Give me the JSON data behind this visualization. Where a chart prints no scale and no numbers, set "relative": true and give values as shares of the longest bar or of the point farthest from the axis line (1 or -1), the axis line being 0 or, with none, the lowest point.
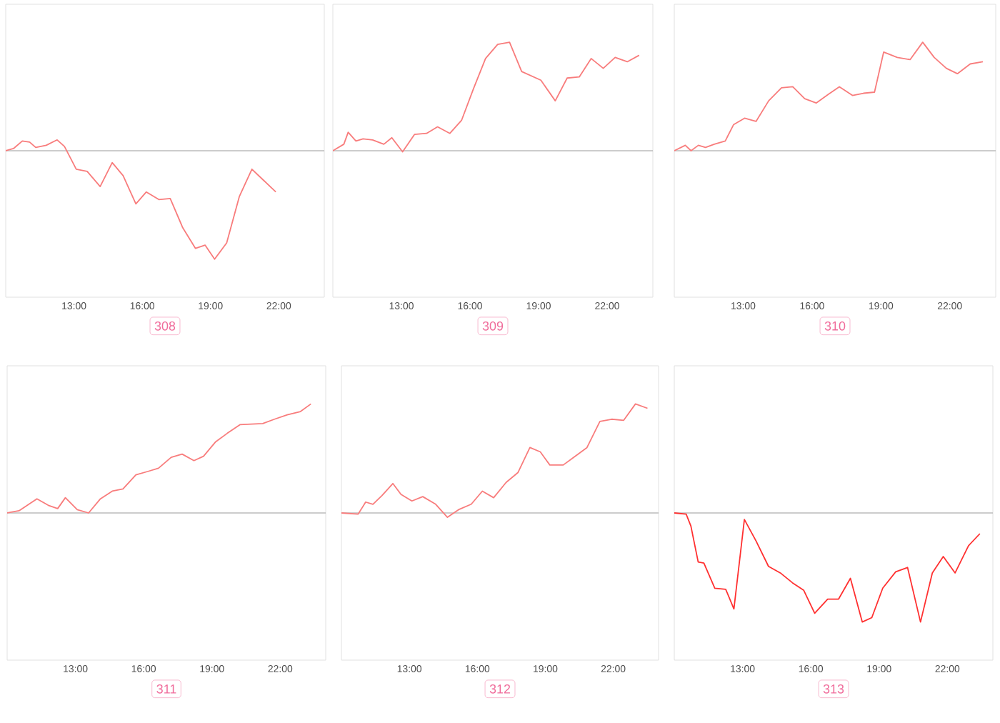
{
  "chart_data": [
    {
      "type": "line",
      "relative": true,
      "xlabel": "308",
      "xlim": [
        10,
        24
      ],
      "xticks": [
        {
          "value": 13,
          "label": "13:00"
        },
        {
          "value": 16,
          "label": "16:00"
        },
        {
          "value": 19,
          "label": "19:00"
        },
        {
          "value": 22,
          "label": "22:00"
        }
      ],
      "tick_labels": "x",
      "ref_lines": [
        {
          "axis": "y",
          "value": 0,
          "color": "#bbbbbb"
        }
      ],
      "x": [
        10,
        10.34,
        10.73,
        11.05,
        11.32,
        11.78,
        12.26,
        12.58,
        13.1,
        13.58,
        14.15,
        14.68,
        15.16,
        15.72,
        16.18,
        16.73,
        17.23,
        17.78,
        18.34,
        18.76,
        19.18,
        19.71,
        20.27,
        20.82,
        21.32,
        21.87
      ],
      "series": [
        {
          "color": "#f87c7c",
          "values": [
            0,
            0.02,
            0.09,
            0.08,
            0.03,
            0.05,
            0.1,
            0.04,
            -0.17,
            -0.19,
            -0.33,
            -0.11,
            -0.23,
            -0.49,
            -0.38,
            -0.45,
            -0.44,
            -0.71,
            -0.9,
            -0.87,
            -1,
            -0.85,
            -0.42,
            -0.17,
            -0.27,
            -0.38
          ]
        }
      ]
    },
    {
      "type": "line",
      "relative": true,
      "xlabel": "309",
      "xlim": [
        10,
        24
      ],
      "xticks": [
        {
          "value": 13,
          "label": "13:00"
        },
        {
          "value": 16,
          "label": "16:00"
        },
        {
          "value": 19,
          "label": "19:00"
        },
        {
          "value": 22,
          "label": "22:00"
        }
      ],
      "tick_labels": "x",
      "ref_lines": [
        {
          "axis": "y",
          "value": 0,
          "color": "#bbbbbb"
        }
      ],
      "x": [
        10,
        10.48,
        10.67,
        11.01,
        11.32,
        11.74,
        12.23,
        12.58,
        13.05,
        13.57,
        14.1,
        14.58,
        15.12,
        15.63,
        16.15,
        16.68,
        17.21,
        17.73,
        18.26,
        19.1,
        19.73,
        20.25,
        20.78,
        21.3,
        21.83,
        22.35,
        22.88,
        23.4
      ],
      "series": [
        {
          "color": "#f87c7c",
          "values": [
            0,
            0.06,
            0.17,
            0.09,
            0.11,
            0.1,
            0.06,
            0.12,
            -0.01,
            0.15,
            0.16,
            0.22,
            0.16,
            0.28,
            0.57,
            0.85,
            0.98,
            1,
            0.73,
            0.65,
            0.46,
            0.67,
            0.68,
            0.85,
            0.76,
            0.86,
            0.82,
            0.88
          ]
        }
      ]
    },
    {
      "type": "line",
      "relative": true,
      "xlabel": "310",
      "xlim": [
        10,
        24
      ],
      "xticks": [
        {
          "value": 13,
          "label": "13:00"
        },
        {
          "value": 16,
          "label": "16:00"
        },
        {
          "value": 19,
          "label": "19:00"
        },
        {
          "value": 22,
          "label": "22:00"
        }
      ],
      "tick_labels": "x",
      "ref_lines": [
        {
          "axis": "y",
          "value": 0,
          "color": "#bbbbbb"
        }
      ],
      "x": [
        10,
        10.48,
        10.73,
        11.05,
        11.36,
        11.74,
        12.22,
        12.58,
        13.06,
        13.56,
        14.11,
        14.67,
        15.16,
        15.68,
        16.18,
        16.71,
        17.19,
        17.76,
        18.24,
        18.72,
        19.12,
        19.71,
        20.27,
        20.82,
        21.32,
        21.85,
        22.33,
        22.89,
        23.44
      ],
      "series": [
        {
          "color": "#f87c7c",
          "values": [
            0,
            0.05,
            0,
            0.05,
            0.03,
            0.06,
            0.09,
            0.24,
            0.3,
            0.27,
            0.46,
            0.58,
            0.59,
            0.48,
            0.44,
            0.52,
            0.59,
            0.51,
            0.53,
            0.54,
            0.91,
            0.86,
            0.84,
            1,
            0.86,
            0.76,
            0.71,
            0.8,
            0.82
          ]
        }
      ]
    },
    {
      "type": "line",
      "relative": true,
      "xlabel": "311",
      "xlim": [
        10,
        24
      ],
      "xticks": [
        {
          "value": 13,
          "label": "13:00"
        },
        {
          "value": 16,
          "label": "16:00"
        },
        {
          "value": 19,
          "label": "19:00"
        },
        {
          "value": 22,
          "label": "22:00"
        }
      ],
      "tick_labels": "x",
      "ref_lines": [
        {
          "axis": "y",
          "value": 0,
          "color": "#bbbbbb"
        }
      ],
      "x": [
        10,
        10.52,
        11.31,
        11.81,
        12.22,
        12.56,
        13.08,
        13.58,
        14.1,
        14.62,
        15.09,
        15.66,
        16.17,
        16.65,
        17.21,
        17.69,
        18.21,
        18.63,
        19.15,
        19.67,
        20.23,
        21.23,
        21.75,
        22.31,
        22.89,
        23.35
      ],
      "series": [
        {
          "color": "#f87c7c",
          "values": [
            0,
            0.02,
            0.13,
            0.07,
            0.04,
            0.14,
            0.03,
            0,
            0.13,
            0.2,
            0.22,
            0.35,
            0.38,
            0.41,
            0.51,
            0.54,
            0.48,
            0.52,
            0.65,
            0.73,
            0.81,
            0.82,
            0.86,
            0.9,
            0.93,
            1
          ]
        }
      ]
    },
    {
      "type": "line",
      "relative": true,
      "xlabel": "312",
      "xlim": [
        10,
        24
      ],
      "xticks": [
        {
          "value": 13,
          "label": "13:00"
        },
        {
          "value": 16,
          "label": "16:00"
        },
        {
          "value": 19,
          "label": "19:00"
        },
        {
          "value": 22,
          "label": "22:00"
        }
      ],
      "tick_labels": "x",
      "ref_lines": [
        {
          "axis": "y",
          "value": 0,
          "color": "#bbbbbb"
        }
      ],
      "x": [
        10,
        10.74,
        11.07,
        11.39,
        11.79,
        12.27,
        12.63,
        13.11,
        13.59,
        14.16,
        14.68,
        15.17,
        15.73,
        16.22,
        16.72,
        17.27,
        17.79,
        18.32,
        18.78,
        19.2,
        19.79,
        20.25,
        20.84,
        21.41,
        21.93,
        22.46,
        22.98,
        23.51
      ],
      "series": [
        {
          "color": "#f87c7c",
          "values": [
            0,
            -0.01,
            0.1,
            0.08,
            0.16,
            0.27,
            0.17,
            0.11,
            0.15,
            0.08,
            -0.04,
            0.03,
            0.08,
            0.2,
            0.14,
            0.28,
            0.37,
            0.6,
            0.56,
            0.44,
            0.44,
            0.51,
            0.6,
            0.84,
            0.86,
            0.85,
            1,
            0.96
          ]
        }
      ]
    },
    {
      "type": "line",
      "relative": true,
      "xlabel": "313",
      "xlim": [
        10,
        24
      ],
      "xticks": [
        {
          "value": 13,
          "label": "13:00"
        },
        {
          "value": 16,
          "label": "16:00"
        },
        {
          "value": 19,
          "label": "19:00"
        },
        {
          "value": 22,
          "label": "22:00"
        }
      ],
      "tick_labels": "x",
      "ref_lines": [
        {
          "axis": "y",
          "value": 0,
          "color": "#bbbbbb"
        }
      ],
      "x": [
        10,
        10.52,
        10.73,
        11.05,
        11.3,
        11.78,
        12.26,
        12.62,
        13.08,
        13.6,
        14.14,
        14.66,
        15.19,
        15.69,
        16.17,
        16.74,
        17.22,
        17.74,
        18.26,
        18.68,
        19.16,
        19.73,
        20.25,
        20.82,
        21.34,
        21.82,
        22.34,
        22.93,
        23.43
      ],
      "series": [
        {
          "color": "#ff3030",
          "values": [
            0,
            -0.01,
            -0.12,
            -0.45,
            -0.46,
            -0.69,
            -0.7,
            -0.88,
            -0.06,
            -0.26,
            -0.49,
            -0.55,
            -0.64,
            -0.71,
            -0.92,
            -0.79,
            -0.79,
            -0.6,
            -1,
            -0.96,
            -0.69,
            -0.54,
            -0.5,
            -1,
            -0.55,
            -0.4,
            -0.55,
            -0.3,
            -0.19
          ]
        }
      ]
    }
  ]
}
